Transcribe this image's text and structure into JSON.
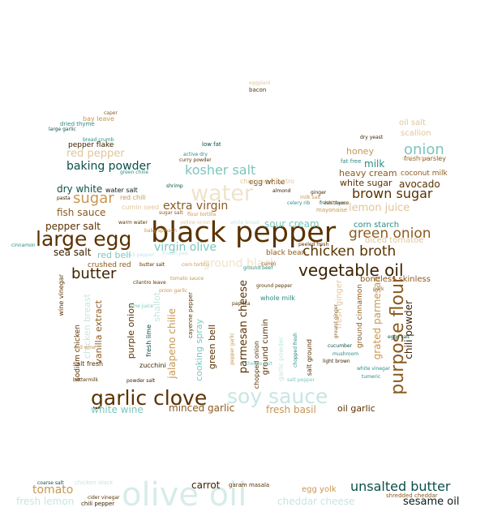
{
  "palette": {
    "dark_brown": "#5a3200",
    "brown": "#8c5a1e",
    "tan": "#c89650",
    "light_tan": "#e0c69a",
    "dark_teal": "#0b4f4a",
    "teal": "#2a8c84",
    "light_teal": "#7cc6bd",
    "pale_teal": "#c6e6e2",
    "pale_tan": "#efe3cc"
  },
  "words": [
    "black pepper",
    "large egg",
    "garlic clove",
    "soy sauce",
    "vegetable oil",
    "olive oil",
    "water",
    "purpose flour",
    "chicken broth",
    "green onion",
    "brown sugar",
    "butter",
    "sugar",
    "onion",
    "kosher salt",
    "baking powder",
    "extra virgin",
    "virgin olive",
    "unsalted butter",
    "lemon juice",
    "sesame oil",
    "parmesan cheese",
    "grated parmesan",
    "pepper salt",
    "sea salt",
    "fish sauce",
    "red pepper",
    "sour cream",
    "honey",
    "milk",
    "avocado",
    "heavy cream",
    "white sugar",
    "dry white",
    "white wine",
    "minced garlic",
    "fresh basil",
    "cheddar cheese",
    "tomato",
    "carrot",
    "egg yolk",
    "chili powder",
    "jalapeno chilie",
    "purple onion",
    "cooking spray",
    "green bell",
    "ground cumin",
    "vanilla extract",
    "crushed red",
    "boneless skinless",
    "corn starch",
    "diced tomatoe",
    "black bean",
    "ground cinnamon",
    "chicken breast",
    "egg white",
    "pepper flake",
    "bay leave",
    "dried thyme",
    "large garlic",
    "caper",
    "bacon",
    "eggplant",
    "low fat",
    "curry powder",
    "flour tortilla",
    "bread crumb",
    "green chilie",
    "water salt",
    "red chili",
    "cumin seed",
    "shrimp",
    "wine vinegar",
    "sodium chicken",
    "salt fresh",
    "fresh lime",
    "zucchini",
    "cayenne pepper",
    "chopped onion",
    "garlic powder",
    "oil garlic",
    "light brown",
    "white vinegar",
    "tumeric",
    "eggs salt",
    "cucumber",
    "coconut milk",
    "fresh parsley",
    "oil salt",
    "scallion",
    "dry yeast",
    "fat free",
    "ginger",
    "mayonaise",
    "chopped cilantro",
    "garam masala",
    "shredded cheddar",
    "chili pepper",
    "coarse salt",
    "chicken stock",
    "cider vinegar",
    "cilantro leave",
    "sugar salt",
    "cinnamon",
    "warm water",
    "butter salt",
    "tomato sauce",
    "paprika",
    "fresh ginger",
    "whole milk",
    "ground pepper",
    "chopped fresh",
    "salt ground",
    "buttermilk",
    "pasta",
    "almond",
    "lime juice",
    "ground ginger",
    "powder salt",
    "fresh thyme",
    "milk salt",
    "celery rib",
    "baby spinach",
    "onion garlic",
    "peeled fresh",
    "yellow onion",
    "white bread",
    "bell pepper",
    "frozen pea",
    "fresh lemon",
    "active dry",
    "hot sauce",
    "red bell",
    "cold water",
    "corn tortilla",
    "ground black",
    "mushroom",
    "pork",
    "cheese salt",
    "salt pepper",
    "cumin",
    "red wine",
    "pepper garlic",
    "ground beef",
    "shallot"
  ]
}
